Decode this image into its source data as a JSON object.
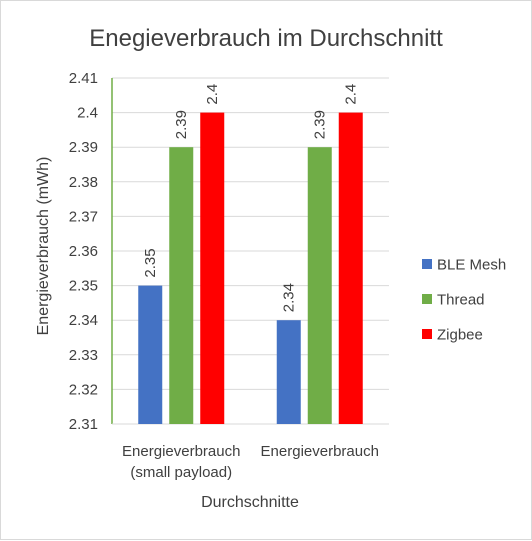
{
  "chart_data": {
    "type": "bar",
    "title": "Enegieverbrauch  im Durchschnitt",
    "xlabel": "Durchschnitte",
    "ylabel": "Energieverbrauch (mWh)",
    "ylim": [
      2.31,
      2.41
    ],
    "ytick_step": 0.01,
    "y_ticks": [
      "2.31",
      "2.32",
      "2.33",
      "2.34",
      "2.35",
      "2.36",
      "2.37",
      "2.38",
      "2.39",
      "2.4",
      "2.41"
    ],
    "categories": [
      [
        "Energieverbrauch",
        "(small payload)"
      ],
      [
        "Energieverbrauch"
      ]
    ],
    "series": [
      {
        "name": "BLE Mesh",
        "color": "#4472c4",
        "values": [
          2.35,
          2.34
        ],
        "labels": [
          "2.35",
          "2.34"
        ]
      },
      {
        "name": "Thread",
        "color": "#70ad47",
        "values": [
          2.39,
          2.39
        ],
        "labels": [
          "2.39",
          "2.39"
        ]
      },
      {
        "name": "Zigbee",
        "color": "#ff0000",
        "values": [
          2.4,
          2.4
        ],
        "labels": [
          "2.4",
          "2.4"
        ]
      }
    ],
    "grid": true,
    "legend_position": "right"
  }
}
